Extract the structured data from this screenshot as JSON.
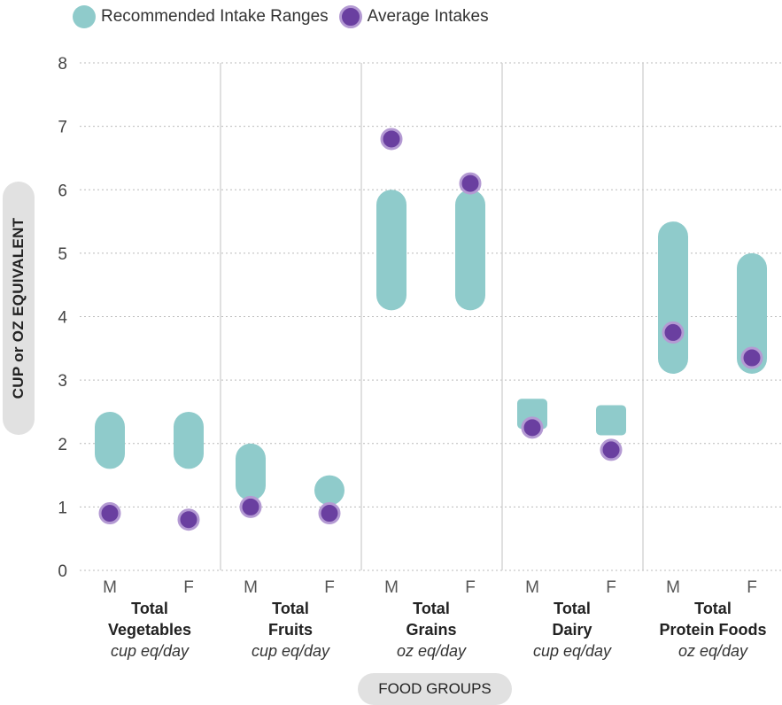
{
  "legend": {
    "range_label": "Recommended Intake Ranges",
    "avg_label": "Average Intakes"
  },
  "colors": {
    "range": "#8fcbcb",
    "avg_fill": "#6a3fa0",
    "avg_stroke": "#b49ad3",
    "grid": "#bbbbbb",
    "divider": "#cccccc"
  },
  "axis": {
    "ylabel": "CUP or OZ EQUIVALENT",
    "xlabel": "FOOD GROUPS"
  },
  "chart_data": {
    "type": "range-dot",
    "ylim": [
      0,
      8
    ],
    "yticks": [
      0,
      1,
      2,
      3,
      4,
      5,
      6,
      7,
      8
    ],
    "grid": true,
    "legend_position": "top-left",
    "groups": [
      {
        "name": "Total",
        "name2": "Vegetables",
        "unit": "cup eq/day",
        "subs": [
          {
            "label": "M",
            "range": [
              1.6,
              2.5
            ],
            "avg": 0.9
          },
          {
            "label": "F",
            "range": [
              1.6,
              2.5
            ],
            "avg": 0.8
          }
        ]
      },
      {
        "name": "Total",
        "name2": "Fruits",
        "unit": "cup eq/day",
        "subs": [
          {
            "label": "M",
            "range": [
              1.1,
              2.0
            ],
            "avg": 1.0
          },
          {
            "label": "F",
            "range": [
              1.1,
              1.5
            ],
            "avg": 0.9
          }
        ]
      },
      {
        "name": "Total",
        "name2": "Grains",
        "unit": "oz eq/day",
        "subs": [
          {
            "label": "M",
            "range": [
              4.1,
              6.0
            ],
            "avg": 6.8
          },
          {
            "label": "F",
            "range": [
              4.1,
              6.0
            ],
            "avg": 6.1
          }
        ]
      },
      {
        "name": "Total",
        "name2": "Dairy",
        "unit": "cup eq/day",
        "subs": [
          {
            "label": "M",
            "range": [
              2.6,
              2.6
            ],
            "avg": 2.25
          },
          {
            "label": "F",
            "range": [
              2.5,
              2.5
            ],
            "avg": 1.9
          }
        ]
      },
      {
        "name": "Total",
        "name2": "Protein Foods",
        "unit": "oz eq/day",
        "subs": [
          {
            "label": "M",
            "range": [
              3.1,
              5.5
            ],
            "avg": 3.75
          },
          {
            "label": "F",
            "range": [
              3.1,
              5.0
            ],
            "avg": 3.35
          }
        ]
      }
    ]
  }
}
